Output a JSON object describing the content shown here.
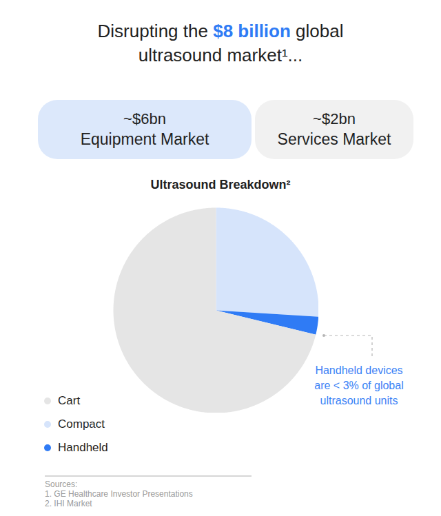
{
  "headline": {
    "text": "Disrupting the $8 billion global ultrasound market¹...",
    "highlight": "$8 billion"
  },
  "markets": [
    {
      "value": "~$6bn",
      "label": "Equipment Market"
    },
    {
      "value": "~$2bn",
      "label": "Services Market"
    }
  ],
  "chart_data": {
    "type": "pie",
    "title": "Ultrasound Breakdown²",
    "categories": [
      "Cart",
      "Compact",
      "Handheld"
    ],
    "values": [
      71.2,
      26,
      2.8
    ],
    "colors": [
      "#e5e5e5",
      "#d6e4fb",
      "#2f7bf5"
    ],
    "legend": "bottom-left",
    "annotations": [
      "Handheld devices are < 3% of global ultrasound units"
    ]
  },
  "sources": {
    "title": "Sources:",
    "items": [
      "1. GE Healthcare Investor Presentations",
      "2. IHI Market"
    ]
  }
}
